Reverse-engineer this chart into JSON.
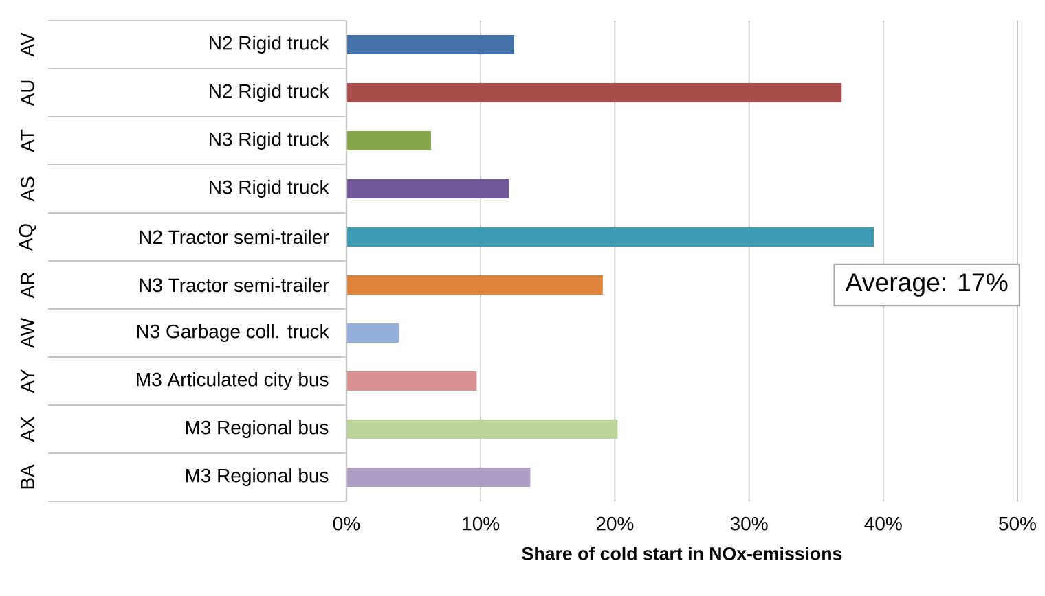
{
  "chart_data": {
    "type": "bar",
    "orientation": "horizontal",
    "xlabel": "Share of cold start in NOx-emissions",
    "categories": [
      "N2 Rigid truck",
      "N2 Rigid truck",
      "N3 Rigid truck",
      "N3 Rigid truck",
      "N2 Tractor semi-trailer",
      "N3 Tractor semi-trailer",
      "N3 Garbage coll. truck",
      "M3 Articulated city bus",
      "M3 Regional bus",
      "M3 Regional bus"
    ],
    "values": [
      12.5,
      36.9,
      6.3,
      12.1,
      39.3,
      19.1,
      3.9,
      9.7,
      20.2,
      13.7
    ],
    "colors": [
      "#4470a8",
      "#a84c4c",
      "#86a84a",
      "#70589a",
      "#3d9cb4",
      "#e0843c",
      "#93aedb",
      "#d99294",
      "#bcd498",
      "#ad9cc4"
    ],
    "xlim": [
      0,
      50
    ],
    "xticks": [
      {
        "value": 0,
        "label": "0%"
      },
      {
        "value": 10,
        "label": "10%"
      },
      {
        "value": 20,
        "label": "20%"
      },
      {
        "value": 30,
        "label": "30%"
      },
      {
        "value": 40,
        "label": "40%"
      },
      {
        "value": 50,
        "label": "50%"
      }
    ],
    "grid": "x",
    "annotations": [
      "AV",
      "AU",
      "AT",
      "AS",
      "AQ",
      "AR",
      "AW",
      "AY",
      "AX",
      "BA",
      "Average: 17%"
    ]
  }
}
